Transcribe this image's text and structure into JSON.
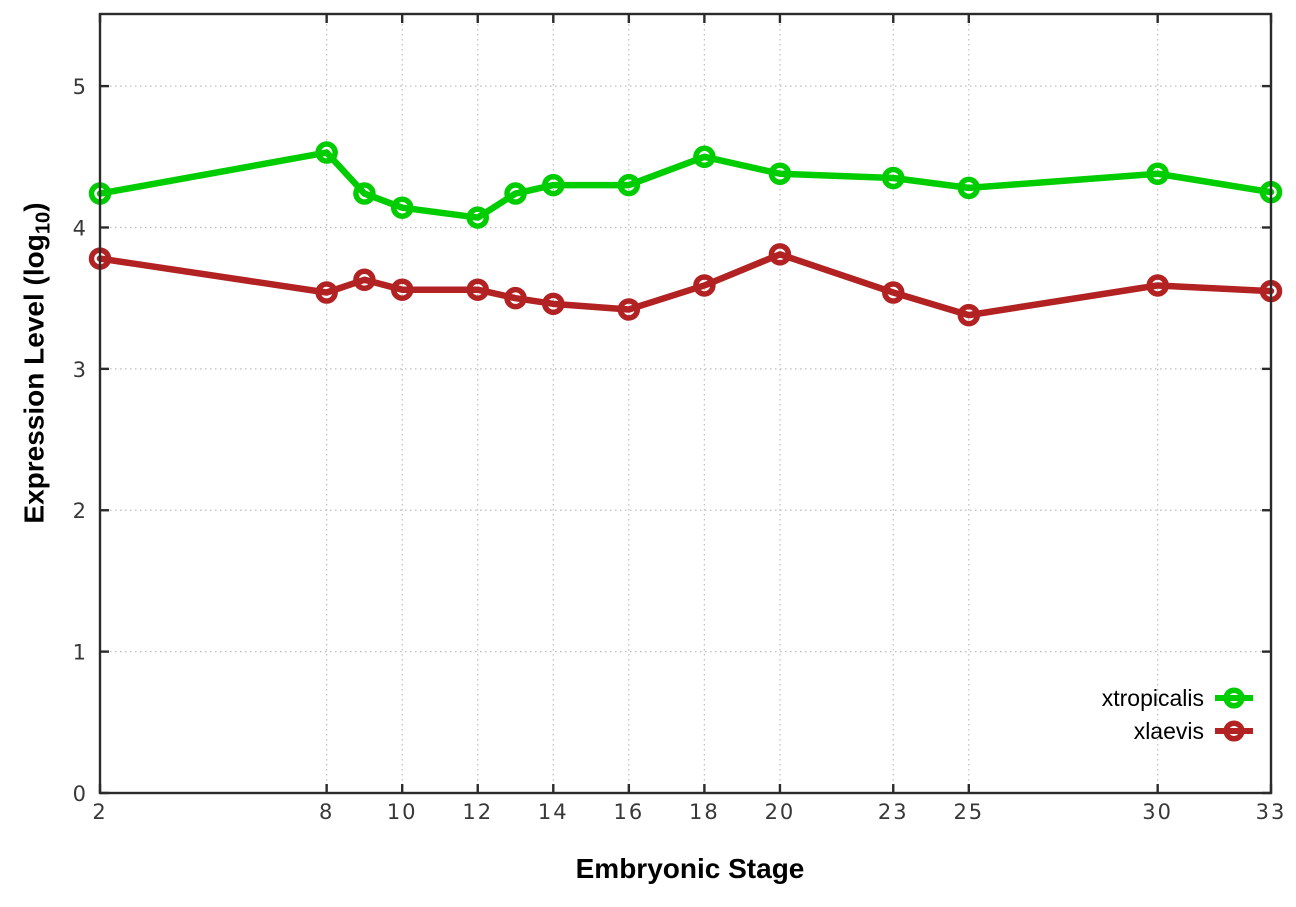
{
  "page": {
    "background": "#ffffff"
  },
  "chart_data": {
    "type": "line",
    "title": "",
    "xlabel": "Embryonic Stage",
    "ylabel": {
      "pre": "Expression Level (log",
      "sub": "10",
      "post": ")"
    },
    "x": [
      2,
      8,
      9,
      10,
      12,
      13,
      14,
      16,
      18,
      20,
      23,
      25,
      30,
      33
    ],
    "x_ticks": [
      "2",
      "8",
      "10",
      "12",
      "14",
      "16",
      "18",
      "20",
      "23",
      "25",
      "30",
      "33"
    ],
    "x_tick_values": [
      2,
      8,
      10,
      12,
      14,
      16,
      18,
      20,
      23,
      25,
      30,
      33
    ],
    "y_ticks": [
      "0",
      "1",
      "2",
      "3",
      "4",
      "5"
    ],
    "y_tick_values": [
      0,
      1,
      2,
      3,
      4,
      5
    ],
    "xlim": [
      2,
      33
    ],
    "ylim": [
      0,
      5.51
    ],
    "grid": true,
    "legend": {
      "position": "inside-bottom-right"
    },
    "series": [
      {
        "name": "xtropicalis",
        "color": "#00cd00",
        "marker": "open-circle",
        "values": [
          4.24,
          4.53,
          4.24,
          4.14,
          4.07,
          4.24,
          4.3,
          4.3,
          4.5,
          4.38,
          4.35,
          4.28,
          4.38,
          4.25
        ]
      },
      {
        "name": "xlaevis",
        "color": "#b22222",
        "marker": "open-circle",
        "values": [
          3.78,
          3.54,
          3.63,
          3.56,
          3.56,
          3.5,
          3.46,
          3.42,
          3.59,
          3.81,
          3.54,
          3.38,
          3.59,
          3.55
        ]
      }
    ],
    "colors": {
      "axis": "#2b2b2b",
      "grid": "#bdbdbd",
      "tick_text": "#383838",
      "title_text": "#000000"
    }
  }
}
